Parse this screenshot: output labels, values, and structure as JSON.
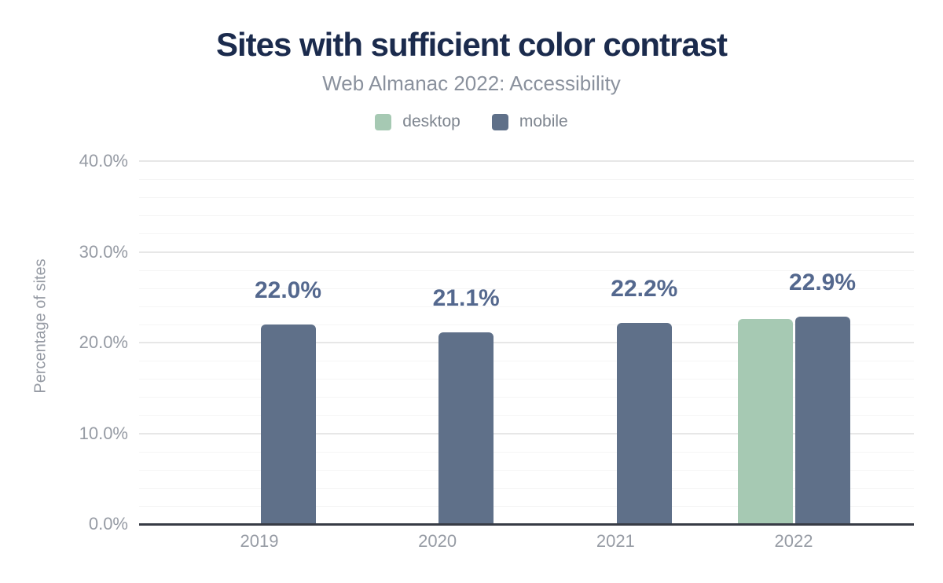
{
  "chart_data": {
    "type": "bar",
    "title": "Sites with sufficient color contrast",
    "subtitle": "Web Almanac 2022: Accessibility",
    "ylabel": "Percentage of sites",
    "xlabel": "",
    "categories": [
      "2019",
      "2020",
      "2021",
      "2022"
    ],
    "series": [
      {
        "name": "desktop",
        "color": "#a6c9b3",
        "values": [
          null,
          null,
          null,
          22.6
        ],
        "labels": [
          null,
          null,
          null,
          null
        ]
      },
      {
        "name": "mobile",
        "color": "#5f7089",
        "values": [
          22.0,
          21.1,
          22.2,
          22.9
        ],
        "labels": [
          "22.0%",
          "21.1%",
          "22.2%",
          "22.9%"
        ]
      }
    ],
    "ylim": [
      0,
      40
    ],
    "yticks": [
      {
        "value": 0,
        "label": "0.0%"
      },
      {
        "value": 10,
        "label": "10.0%"
      },
      {
        "value": 20,
        "label": "20.0%"
      },
      {
        "value": 30,
        "label": "30.0%"
      },
      {
        "value": 40,
        "label": "40.0%"
      }
    ],
    "grid": {
      "major_step": 10,
      "minor_step": 2,
      "major_color": "#e7e7e7",
      "minor_color": "#f5f5f5"
    },
    "legend_position": "top",
    "colors": {
      "title": "#1b2b4d",
      "subtitle": "#8a919d",
      "axis_text": "#969ba4",
      "data_label": "#54688e",
      "axis_line": "#373b45",
      "background": "#ffffff"
    }
  }
}
